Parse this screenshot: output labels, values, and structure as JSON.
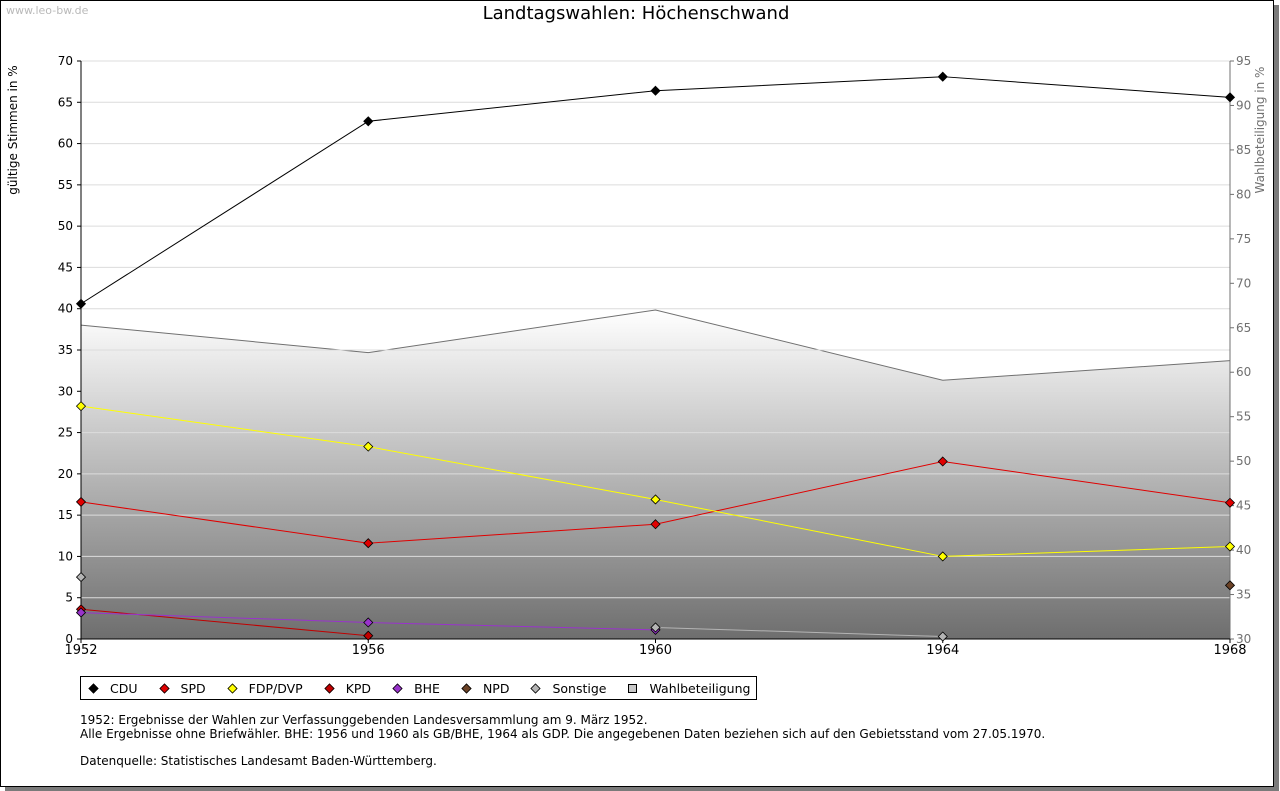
{
  "watermark": "www.leo-bw.de",
  "title": "Landtagswahlen: Höchenschwand",
  "chart_data": {
    "type": "line",
    "title": "Landtagswahlen: Höchenschwand",
    "xlabel": "",
    "x": [
      "1952",
      "1956",
      "1960",
      "1964",
      "1968"
    ],
    "y_left": {
      "label": "gültige Stimmen in %",
      "range": [
        0,
        70
      ],
      "ticks": [
        "0",
        "5",
        "10",
        "15",
        "20",
        "25",
        "30",
        "35",
        "40",
        "45",
        "50",
        "55",
        "60",
        "65",
        "70"
      ]
    },
    "y_right": {
      "label": "Wahlbeteiligung in %",
      "range": [
        30,
        95
      ],
      "ticks": [
        "30",
        "35",
        "40",
        "45",
        "50",
        "55",
        "60",
        "65",
        "70",
        "75",
        "80",
        "85",
        "90",
        "95"
      ]
    },
    "grid": true,
    "legend_position": "bottom",
    "series": [
      {
        "name": "CDU",
        "color": "#000000",
        "values": [
          40.6,
          62.7,
          66.4,
          68.1,
          65.6
        ]
      },
      {
        "name": "SPD",
        "color": "#e00000",
        "values": [
          16.6,
          11.6,
          13.9,
          21.5,
          16.5
        ]
      },
      {
        "name": "FDP/DVP",
        "color": "#ffff00",
        "values": [
          28.2,
          23.3,
          16.9,
          10.0,
          11.2
        ]
      },
      {
        "name": "KPD",
        "color": "#c00000",
        "values": [
          3.6,
          0.4,
          null,
          null,
          null
        ]
      },
      {
        "name": "BHE",
        "color": "#9933cc",
        "values": [
          3.2,
          2.0,
          1.1,
          null,
          null
        ]
      },
      {
        "name": "NPD",
        "color": "#6b4226",
        "values": [
          null,
          null,
          null,
          null,
          6.5
        ]
      },
      {
        "name": "Sonstige",
        "color": "#b4b4b4",
        "values": [
          7.5,
          null,
          1.4,
          0.3,
          null
        ]
      },
      {
        "name": "Wahlbeteiligung",
        "color": "#808080",
        "axis": "right",
        "type": "area",
        "values": [
          65.3,
          62.2,
          67.0,
          59.1,
          61.3
        ]
      }
    ]
  },
  "legend": [
    {
      "label": "CDU",
      "color": "#000000",
      "shape": "diamond"
    },
    {
      "label": "SPD",
      "color": "#e00000",
      "shape": "diamond"
    },
    {
      "label": "FDP/DVP",
      "color": "#ffff00",
      "shape": "diamond"
    },
    {
      "label": "KPD",
      "color": "#c00000",
      "shape": "diamond"
    },
    {
      "label": "BHE",
      "color": "#9933cc",
      "shape": "diamond"
    },
    {
      "label": "NPD",
      "color": "#6b4226",
      "shape": "diamond"
    },
    {
      "label": "Sonstige",
      "color": "#b4b4b4",
      "shape": "diamond"
    },
    {
      "label": "Wahlbeteiligung",
      "color": "#c8c8c8",
      "shape": "square"
    }
  ],
  "notes": {
    "line1": "1952: Ergebnisse der Wahlen zur Verfassunggebenden Landesversammlung am 9. März 1952.",
    "line2": "Alle Ergebnisse ohne Briefwähler. BHE: 1956 und 1960 als GB/BHE, 1964 als GDP. Die angegebenen Daten beziehen sich auf den Gebietsstand vom 27.05.1970.",
    "source": "Datenquelle: Statistisches Landesamt Baden-Württemberg."
  }
}
